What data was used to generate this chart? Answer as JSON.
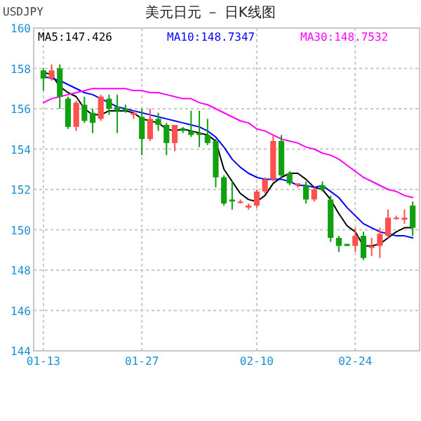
{
  "chart_data": {
    "type": "candlestick",
    "title": "美元日元 － 日K线图",
    "subtitle": "USDJPY",
    "categories": [
      "01-13",
      null,
      null,
      null,
      null,
      null,
      null,
      null,
      null,
      null,
      null,
      null,
      "01-27",
      null,
      null,
      null,
      null,
      null,
      null,
      null,
      null,
      null,
      null,
      null,
      null,
      null,
      "02-10",
      null,
      null,
      null,
      null,
      null,
      null,
      null,
      null,
      null,
      null,
      null,
      "02-24",
      null,
      null,
      null,
      null,
      null,
      null,
      null
    ],
    "ohlc": [
      [
        157.9,
        158.0,
        156.9,
        157.5
      ],
      [
        157.5,
        158.2,
        157.4,
        157.9
      ],
      [
        158.0,
        158.2,
        156.0,
        156.6
      ],
      [
        156.5,
        156.6,
        155.0,
        155.1
      ],
      [
        155.1,
        156.4,
        154.9,
        156.3
      ],
      [
        156.2,
        156.6,
        155.3,
        155.4
      ],
      [
        155.8,
        156.0,
        154.8,
        155.3
      ],
      [
        155.5,
        156.7,
        155.4,
        156.6
      ],
      [
        156.5,
        156.7,
        155.7,
        156.0
      ],
      [
        156.1,
        156.7,
        154.8,
        155.9
      ],
      [
        156.0,
        156.2,
        155.8,
        155.9
      ],
      [
        155.7,
        155.9,
        155.5,
        155.8
      ],
      [
        155.6,
        156.0,
        153.7,
        154.5
      ],
      [
        154.5,
        156.0,
        154.4,
        155.5
      ],
      [
        155.5,
        155.8,
        154.9,
        155.2
      ],
      [
        155.2,
        155.3,
        153.7,
        154.3
      ],
      [
        154.3,
        155.2,
        153.9,
        155.2
      ],
      [
        155.0,
        155.1,
        154.8,
        154.9
      ],
      [
        154.9,
        155.9,
        154.6,
        154.7
      ],
      [
        154.8,
        155.9,
        154.1,
        154.7
      ],
      [
        154.7,
        155.5,
        154.2,
        154.3
      ],
      [
        154.4,
        154.5,
        152.1,
        152.6
      ],
      [
        152.6,
        152.7,
        151.2,
        151.3
      ],
      [
        151.5,
        152.4,
        151.0,
        151.4
      ],
      [
        151.4,
        151.5,
        151.3,
        151.4
      ],
      [
        151.1,
        151.3,
        151.0,
        151.2
      ],
      [
        151.2,
        152.0,
        151.1,
        151.9
      ],
      [
        151.9,
        152.6,
        151.8,
        152.5
      ],
      [
        152.5,
        154.7,
        152.4,
        154.4
      ],
      [
        154.4,
        154.7,
        152.6,
        152.7
      ],
      [
        152.8,
        152.9,
        152.2,
        152.3
      ],
      [
        152.2,
        152.3,
        152.1,
        152.3
      ],
      [
        152.2,
        152.4,
        151.3,
        151.5
      ],
      [
        151.5,
        152.1,
        151.4,
        152.0
      ],
      [
        152.2,
        152.4,
        151.9,
        152.0
      ],
      [
        151.5,
        151.7,
        149.4,
        149.6
      ],
      [
        149.6,
        149.7,
        148.9,
        149.2
      ],
      [
        149.3,
        149.3,
        149.2,
        149.2
      ],
      [
        149.2,
        150.1,
        148.9,
        149.7
      ],
      [
        149.7,
        149.9,
        148.5,
        148.6
      ],
      [
        149.1,
        149.6,
        148.7,
        149.2
      ],
      [
        149.2,
        150.1,
        148.6,
        149.8
      ],
      [
        149.7,
        151.0,
        149.6,
        150.6
      ],
      [
        150.6,
        150.7,
        150.5,
        150.6
      ],
      [
        150.5,
        151.0,
        150.3,
        150.6
      ],
      [
        151.2,
        151.4,
        149.7,
        150.1
      ]
    ],
    "colors": [
      "#10a010",
      "#ff5050",
      "#10a010",
      "#10a010",
      "#ff5050",
      "#10a010",
      "#10a010",
      "#ff5050",
      "#10a010",
      "#10a010",
      "#10a010",
      "#ff5050",
      "#10a010",
      "#ff5050",
      "#10a010",
      "#10a010",
      "#ff5050",
      "#10a010",
      "#10a010",
      "#10a010",
      "#10a010",
      "#10a010",
      "#10a010",
      "#10a010",
      "#ff5050",
      "#ff5050",
      "#ff5050",
      "#ff5050",
      "#ff5050",
      "#10a010",
      "#10a010",
      "#ff5050",
      "#10a010",
      "#ff5050",
      "#10a010",
      "#10a010",
      "#10a010",
      "#10a010",
      "#ff5050",
      "#10a010",
      "#ff5050",
      "#ff5050",
      "#ff5050",
      "#ff5050",
      "#ff5050",
      "#10a010"
    ],
    "series": [
      {
        "type": "line",
        "name": "MA5:147.426",
        "color": "#000000",
        "values": [
          157.8,
          157.7,
          157.1,
          156.8,
          156.6,
          156.0,
          155.7,
          155.7,
          155.9,
          155.9,
          155.9,
          155.8,
          155.5,
          155.4,
          155.3,
          155.0,
          154.9,
          155.0,
          154.9,
          154.8,
          154.7,
          154.4,
          153.0,
          152.4,
          151.8,
          151.5,
          151.4,
          151.7,
          152.3,
          152.6,
          152.8,
          152.8,
          152.5,
          152.1,
          152.0,
          151.5,
          150.8,
          150.2,
          149.9,
          149.2,
          149.2,
          149.3,
          149.6,
          149.9,
          150.1,
          150.1
        ]
      },
      {
        "type": "line",
        "name": "MA10:148.7347",
        "color": "#0000ff",
        "values": [
          157.6,
          157.5,
          157.4,
          157.2,
          157.0,
          156.8,
          156.7,
          156.5,
          156.3,
          156.1,
          156.0,
          155.9,
          155.8,
          155.7,
          155.6,
          155.5,
          155.4,
          155.3,
          155.2,
          155.1,
          154.9,
          154.6,
          154.1,
          153.5,
          153.1,
          152.8,
          152.6,
          152.5,
          152.5,
          152.5,
          152.4,
          152.2,
          152.2,
          152.1,
          152.2,
          151.9,
          151.6,
          151.1,
          150.7,
          150.3,
          150.1,
          149.9,
          149.8,
          149.7,
          149.7,
          149.6
        ]
      },
      {
        "type": "line",
        "name": "MA30:148.7532",
        "color": "#ff00ff",
        "values": [
          156.3,
          156.5,
          156.6,
          156.7,
          156.8,
          156.9,
          157.0,
          157.0,
          157.0,
          157.0,
          157.0,
          156.9,
          156.9,
          156.8,
          156.8,
          156.7,
          156.6,
          156.5,
          156.5,
          156.3,
          156.2,
          156.0,
          155.8,
          155.6,
          155.4,
          155.3,
          155.0,
          154.9,
          154.7,
          154.5,
          154.4,
          154.3,
          154.1,
          154.0,
          153.8,
          153.7,
          153.5,
          153.2,
          152.9,
          152.6,
          152.4,
          152.2,
          152.0,
          151.9,
          151.7,
          151.6
        ]
      }
    ],
    "ylim": [
      144,
      160
    ],
    "yticks": [
      144,
      146,
      148,
      150,
      152,
      154,
      156,
      158,
      160
    ],
    "grid": true,
    "legend": "top"
  }
}
